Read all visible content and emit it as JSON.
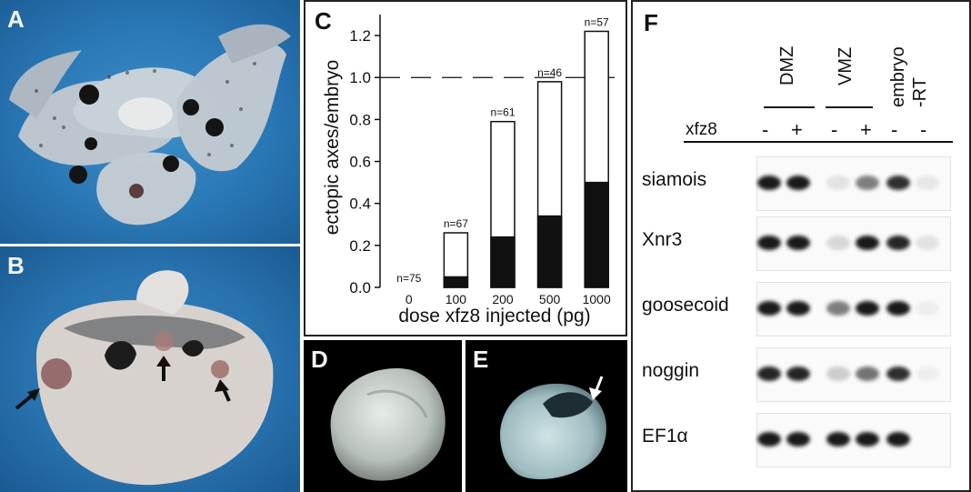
{
  "panels": {
    "a": {
      "label": "A"
    },
    "b": {
      "label": "B"
    },
    "c": {
      "label": "C"
    },
    "d": {
      "label": "D"
    },
    "e": {
      "label": "E"
    },
    "f": {
      "label": "F"
    }
  },
  "chart_data": {
    "type": "bar",
    "stacked": true,
    "categories": [
      "0",
      "100",
      "200",
      "500",
      "1000"
    ],
    "n_labels": [
      "n=75",
      "n=67",
      "n=61",
      "n=46",
      "n=57"
    ],
    "series": [
      {
        "values": [
          0.0,
          0.05,
          0.24,
          0.34,
          0.5
        ],
        "color": "#111111"
      },
      {
        "values": [
          0.0,
          0.21,
          0.55,
          0.64,
          0.72
        ],
        "color": "#ffffff"
      }
    ],
    "totals": [
      0.0,
      0.26,
      0.79,
      0.98,
      1.22
    ],
    "xlabel": "dose xfz8 injected (pg)",
    "ylabel": "ectopic axes/embryo",
    "ylim": [
      0.0,
      1.3
    ],
    "yticks": [
      "0.0",
      "0.2",
      "0.4",
      "0.6",
      "0.8",
      "1.0",
      "1.2"
    ],
    "reference_line": 1.0,
    "grid": false
  },
  "gel": {
    "lanes": [
      "DMZ",
      "VMZ",
      "embryo",
      "-RT"
    ],
    "xfz8_label": "xfz8",
    "signs": [
      "-",
      "+",
      "-",
      "+",
      "-",
      "-"
    ],
    "rows": [
      "siamois",
      "Xnr3",
      "goosecoid",
      "noggin",
      "EF1α"
    ],
    "band_intensity": [
      [
        1.0,
        1.0,
        0.1,
        0.55,
        0.9,
        0.08
      ],
      [
        1.0,
        1.0,
        0.15,
        1.0,
        0.95,
        0.1
      ],
      [
        1.0,
        1.0,
        0.55,
        1.0,
        1.0,
        0.05
      ],
      [
        0.95,
        0.95,
        0.2,
        0.6,
        0.9,
        0.05
      ],
      [
        1.0,
        1.0,
        1.0,
        1.0,
        1.0,
        0.0
      ]
    ]
  }
}
